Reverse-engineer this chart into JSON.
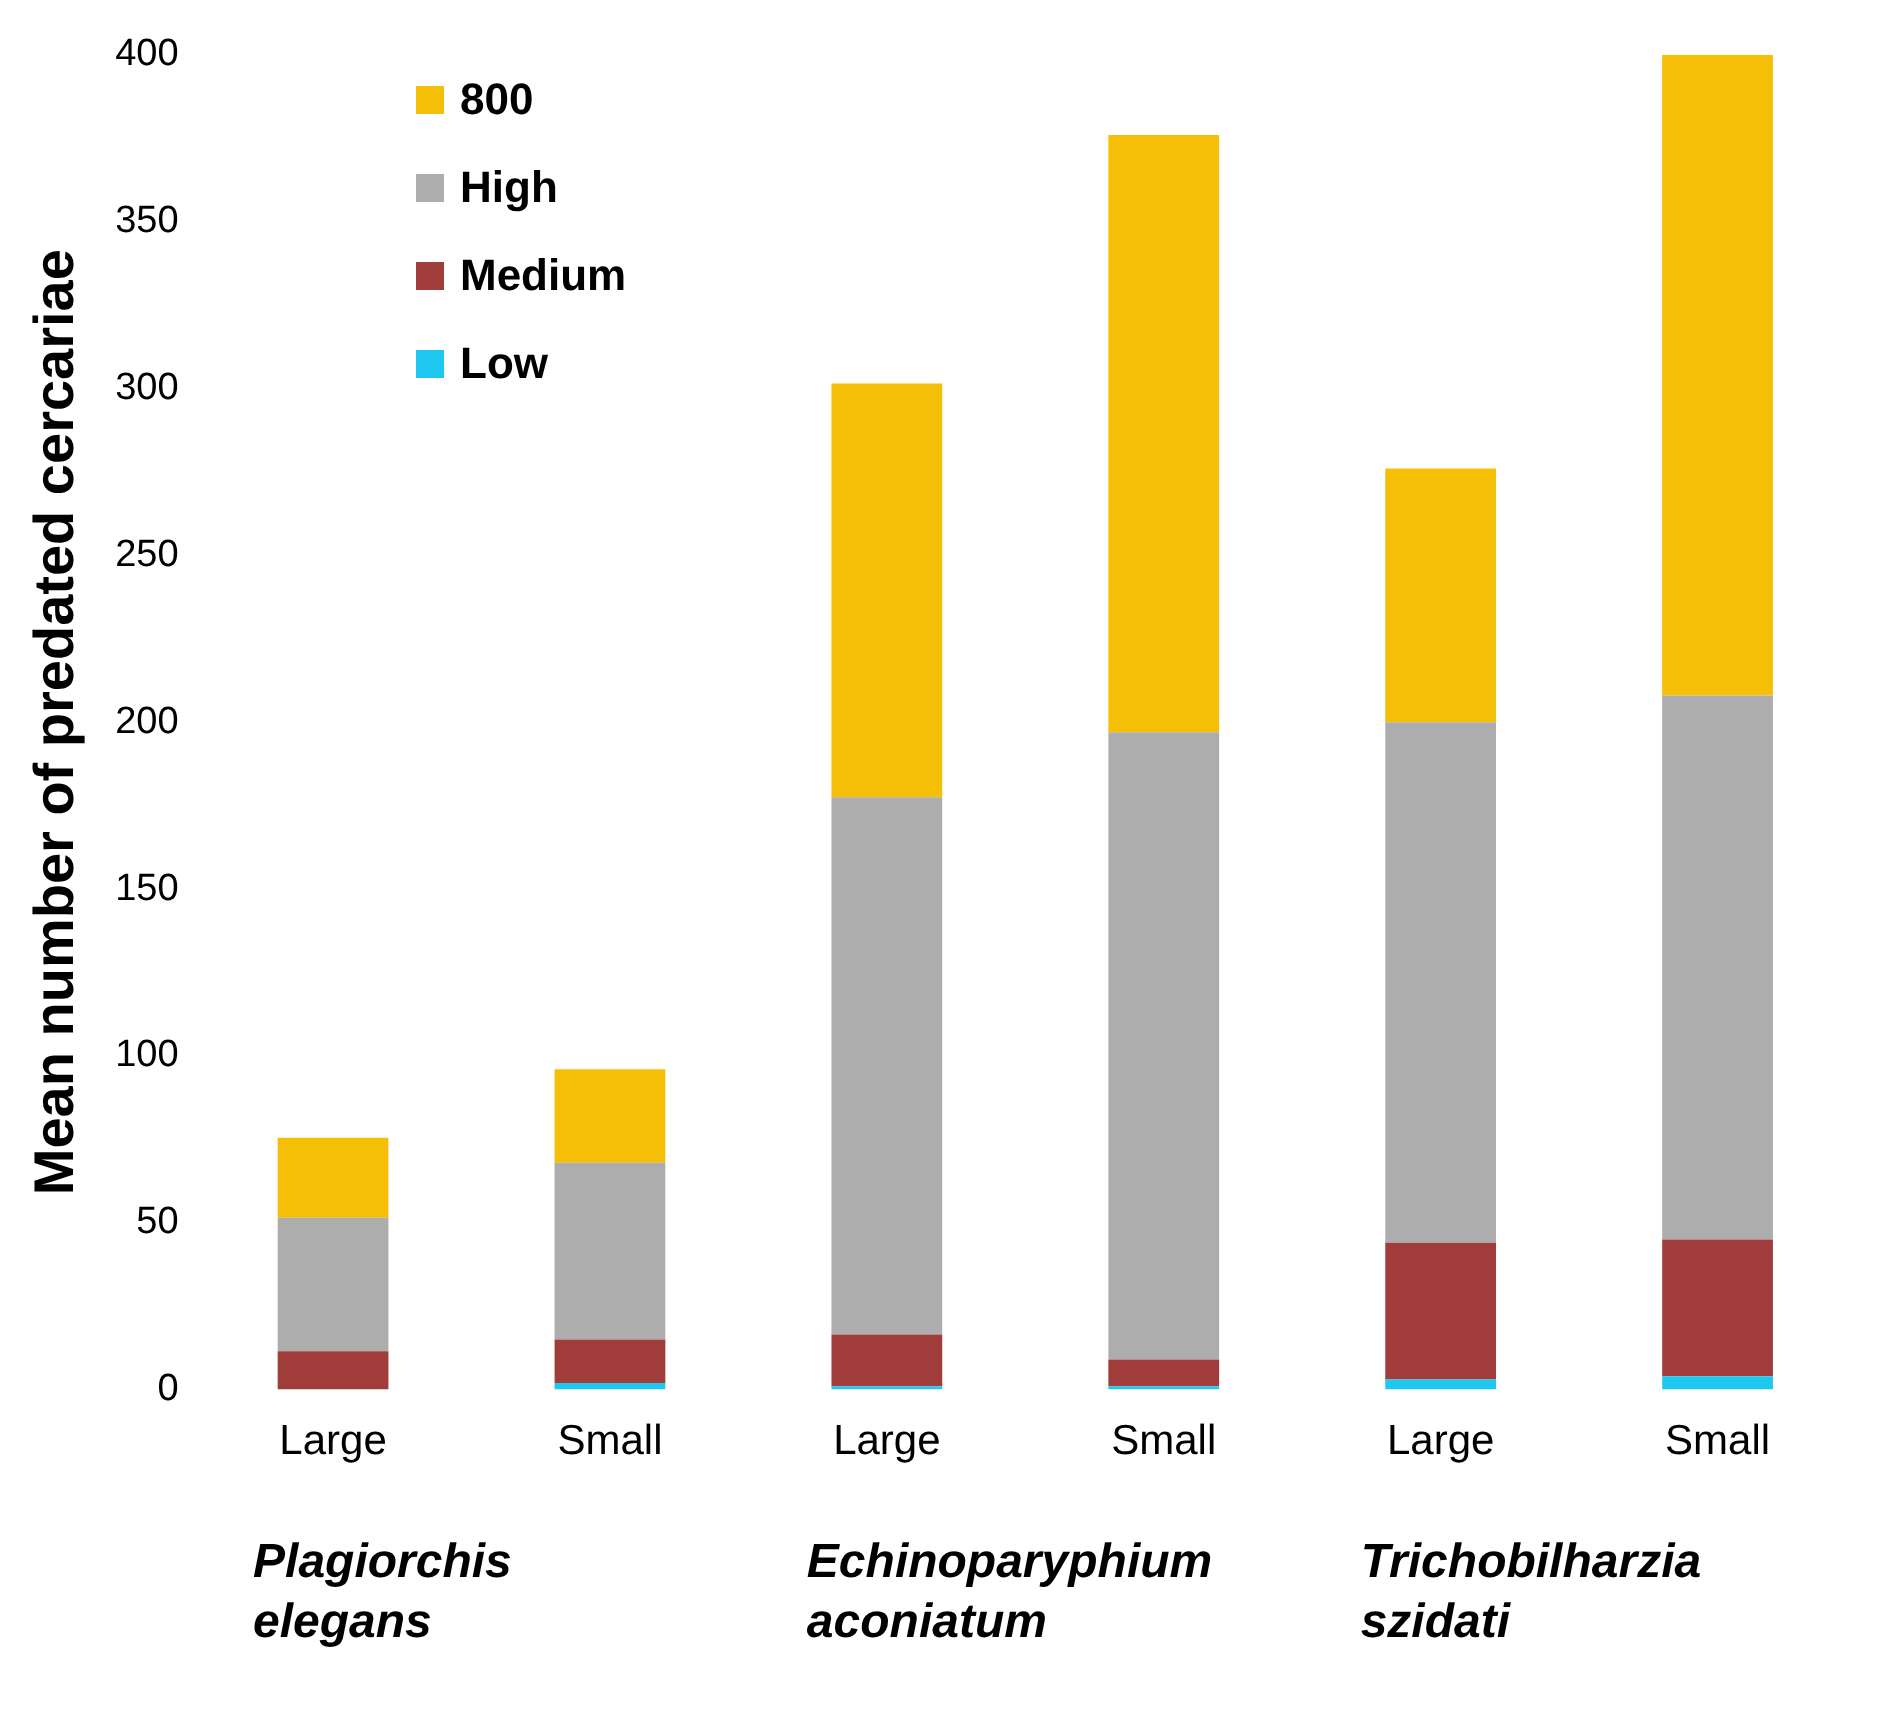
{
  "chart_data": {
    "type": "bar",
    "stacked": true,
    "ylabel": "Mean number of predated cercariae",
    "categories": [
      "Large",
      "Small",
      "Large",
      "Small",
      "Large",
      "Small"
    ],
    "series": [
      {
        "name": "Low",
        "color": "#1ec8f0",
        "values": [
          0,
          2,
          1,
          1,
          3,
          4
        ]
      },
      {
        "name": "Medium",
        "color": "#a03c3a",
        "values": [
          11.5,
          13,
          15.5,
          8,
          41,
          41
        ]
      },
      {
        "name": "High",
        "color": "#adadad",
        "values": [
          40,
          53,
          161,
          188,
          156,
          163
        ]
      },
      {
        "name": "800",
        "color": "#f6bf07",
        "values": [
          24,
          28,
          124,
          179,
          76,
          192
        ]
      }
    ],
    "ylim": [
      0,
      400
    ],
    "yticks": [
      0,
      50,
      100,
      150,
      200,
      250,
      300,
      350,
      400
    ],
    "grid": false,
    "legend": "top left",
    "annotations": [
      "Plagiorchis elegans",
      "Echinoparyphium aconiatum",
      "Trichobilharzia szidati"
    ]
  }
}
